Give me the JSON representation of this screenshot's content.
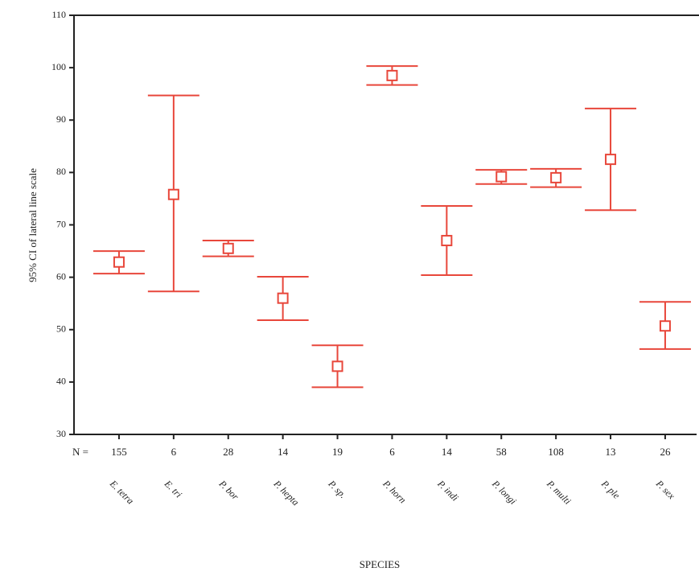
{
  "chart_data": {
    "type": "errorbar",
    "y_label": "95% CI of lateral line scale",
    "x_label": "SPECIES",
    "n_label": "N =",
    "categories": [
      "E. tetra",
      "E. tri",
      "P. bor",
      "P. hepta",
      "P. sp.",
      "P. horn",
      "P. indi",
      "P. longi",
      "P. multi",
      "P. ple",
      "P. sex"
    ],
    "n_values": [
      155,
      6,
      28,
      14,
      19,
      6,
      14,
      58,
      108,
      13,
      26
    ],
    "values": [
      62.9,
      75.8,
      65.5,
      56.0,
      43.0,
      98.5,
      67.0,
      79.2,
      79.0,
      82.5,
      50.7
    ],
    "lower": [
      60.7,
      57.3,
      64.0,
      51.8,
      39.0,
      96.7,
      60.4,
      77.8,
      77.2,
      72.8,
      46.3
    ],
    "upper": [
      65.0,
      94.7,
      67.0,
      60.1,
      47.0,
      100.3,
      73.6,
      80.5,
      80.7,
      92.2,
      55.3
    ],
    "color": "#e8473b",
    "ylim": [
      30,
      110
    ],
    "yticks": [
      30,
      40,
      50,
      60,
      70,
      80,
      90,
      100,
      110
    ]
  }
}
